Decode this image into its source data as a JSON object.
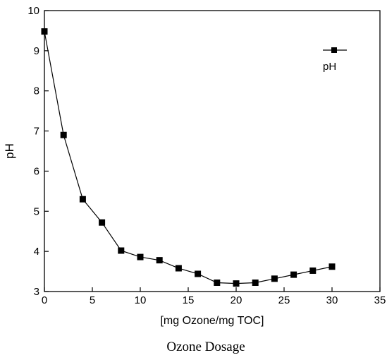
{
  "chart_data": {
    "type": "line",
    "title": "",
    "xlabel": "[mg Ozone/mg TOC]",
    "ylabel": "pH",
    "caption": "Ozone Dosage",
    "xlim": [
      0,
      35
    ],
    "ylim": [
      3,
      10
    ],
    "xticks": [
      0,
      5,
      10,
      15,
      20,
      25,
      30,
      35
    ],
    "yticks": [
      3,
      4,
      5,
      6,
      7,
      8,
      9,
      10
    ],
    "grid": false,
    "legend_position": "top-right",
    "series": [
      {
        "name": "pH",
        "marker": "square",
        "color": "#000000",
        "x": [
          0,
          2,
          4,
          6,
          8,
          10,
          12,
          14,
          16,
          18,
          20,
          22,
          24,
          26,
          28,
          30
        ],
        "y": [
          9.48,
          6.9,
          5.3,
          4.72,
          4.02,
          3.86,
          3.78,
          3.58,
          3.44,
          3.22,
          3.2,
          3.22,
          3.32,
          3.42,
          3.52,
          3.62
        ]
      }
    ]
  }
}
